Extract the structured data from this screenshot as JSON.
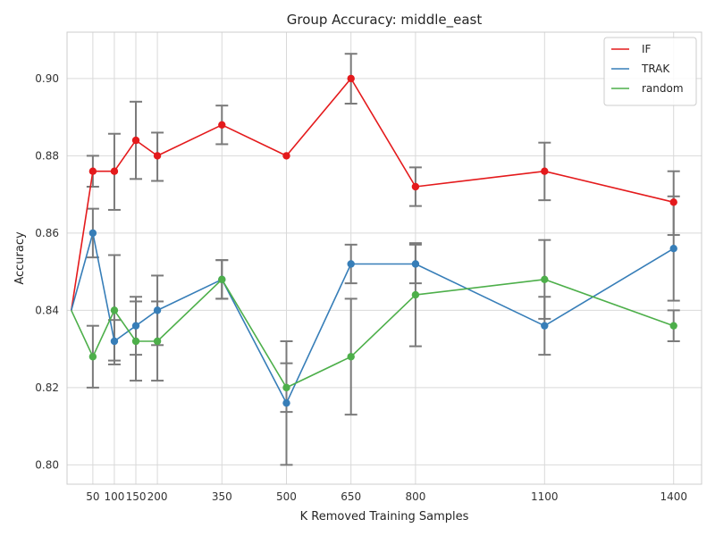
{
  "chart_data": {
    "type": "line",
    "title": "Group Accuracy: middle_east",
    "xlabel": "K Removed Training Samples",
    "ylabel": "Accuracy",
    "x_ticks": [
      50,
      100,
      150,
      200,
      350,
      500,
      650,
      800,
      1100,
      1400
    ],
    "x_tick_labels": [
      "50",
      "100",
      "150",
      "200",
      "350",
      "500",
      "650",
      "800",
      "1100",
      "1400"
    ],
    "xlim": [
      -10,
      1465
    ],
    "ylim": [
      0.795,
      0.912
    ],
    "y_ticks": [
      0.8,
      0.82,
      0.84,
      0.86,
      0.88,
      0.9
    ],
    "y_tick_labels": [
      "0.80",
      "0.82",
      "0.84",
      "0.86",
      "0.88",
      "0.90"
    ],
    "grid": true,
    "legend_position": "top-right",
    "baseline": {
      "x": 0,
      "y": 0.84
    },
    "x": [
      50,
      100,
      150,
      200,
      350,
      500,
      650,
      800,
      1100,
      1400
    ],
    "series": [
      {
        "name": "IF",
        "color": "#e41a1c",
        "values": [
          0.876,
          0.876,
          0.884,
          0.88,
          0.888,
          0.88,
          0.9,
          0.872,
          0.876,
          0.868
        ],
        "err_low": [
          0.872,
          0.866,
          0.874,
          0.8735,
          0.883,
          0.88,
          0.8935,
          0.867,
          0.8685,
          0.8595
        ],
        "err_high": [
          0.88,
          0.8857,
          0.894,
          0.886,
          0.893,
          0.88,
          0.9064,
          0.877,
          0.8834,
          0.876
        ]
      },
      {
        "name": "TRAK",
        "color": "#377eb8",
        "values": [
          0.86,
          0.832,
          0.836,
          0.84,
          0.848,
          0.816,
          0.852,
          0.852,
          0.836,
          0.856
        ],
        "err_low": [
          0.8537,
          0.826,
          0.8285,
          0.831,
          0.843,
          0.8,
          0.847,
          0.847,
          0.8285,
          0.8425
        ],
        "err_high": [
          0.8663,
          0.8375,
          0.8435,
          0.849,
          0.853,
          0.832,
          0.857,
          0.857,
          0.8435,
          0.8695
        ]
      },
      {
        "name": "random",
        "color": "#4daf4a",
        "values": [
          0.828,
          0.84,
          0.832,
          0.832,
          0.848,
          0.82,
          0.828,
          0.844,
          0.848,
          0.836
        ],
        "err_low": [
          0.82,
          0.827,
          0.8218,
          0.8218,
          0.843,
          0.8137,
          0.813,
          0.8307,
          0.8378,
          0.832
        ],
        "err_high": [
          0.836,
          0.8543,
          0.8423,
          0.8423,
          0.853,
          0.8263,
          0.843,
          0.8574,
          0.8582,
          0.84
        ]
      }
    ]
  }
}
